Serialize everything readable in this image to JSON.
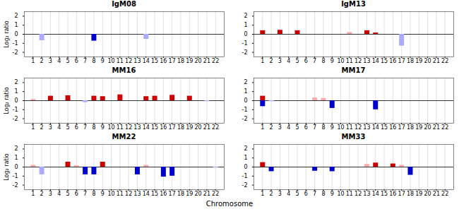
{
  "chart_data": [
    {
      "type": "bar",
      "title": "IgM08",
      "x": [
        2,
        8,
        14
      ],
      "values": [
        -0.7,
        -0.75,
        -0.55
      ],
      "colors": [
        "#aaaaff",
        "#0000cc",
        "#aaaaff"
      ],
      "xlim": [
        0,
        23
      ],
      "xticks": [
        1,
        2,
        3,
        4,
        5,
        6,
        7,
        8,
        9,
        10,
        11,
        12,
        13,
        14,
        15,
        16,
        17,
        18,
        19,
        20,
        21,
        22
      ],
      "ylim": [
        -2.5,
        2.5
      ],
      "yticks": [
        -2,
        -1,
        0,
        1,
        2
      ],
      "ylabel": "Log₂ ratio",
      "grid": true
    },
    {
      "type": "bar",
      "title": "IgM13",
      "x": [
        1,
        3,
        5,
        11,
        13,
        14,
        17
      ],
      "values": [
        0.4,
        0.45,
        0.4,
        0.2,
        0.4,
        0.15,
        -1.3
      ],
      "colors": [
        "#cc0000",
        "#cc0000",
        "#cc0000",
        "#ffaaaa",
        "#cc0000",
        "#cc0000",
        "#aaaaff"
      ],
      "xlim": [
        0,
        23
      ],
      "xticks": [
        1,
        2,
        3,
        4,
        5,
        6,
        7,
        8,
        9,
        10,
        11,
        12,
        13,
        14,
        15,
        16,
        17,
        18,
        19,
        20,
        21,
        22
      ],
      "ylim": [
        -2.5,
        2.5
      ],
      "yticks": [
        -2,
        -1,
        0,
        1,
        2
      ],
      "grid": true
    },
    {
      "type": "bar",
      "title": "MM16",
      "x": [
        1,
        3,
        5,
        7,
        8,
        9,
        11,
        14,
        15,
        17,
        19,
        21
      ],
      "values": [
        0.15,
        0.5,
        0.55,
        -0.2,
        0.5,
        0.45,
        0.65,
        0.45,
        0.5,
        0.6,
        0.5,
        -0.1
      ],
      "colors": [
        "#ffaaaa",
        "#cc0000",
        "#cc0000",
        "#aaaaff",
        "#cc0000",
        "#cc0000",
        "#cc0000",
        "#cc0000",
        "#cc0000",
        "#cc0000",
        "#cc0000",
        "#aaaaff"
      ],
      "xlim": [
        0,
        23
      ],
      "xticks": [
        1,
        2,
        3,
        4,
        5,
        6,
        7,
        8,
        9,
        10,
        11,
        12,
        13,
        14,
        15,
        16,
        17,
        18,
        19,
        20,
        21,
        22
      ],
      "ylim": [
        -2.5,
        2.5
      ],
      "yticks": [
        -2,
        -1,
        0,
        1,
        2
      ],
      "ylabel": "Log₂ ratio",
      "grid": true
    },
    {
      "type": "bar",
      "title": "MM17",
      "x": [
        1,
        1,
        7,
        8,
        9,
        14,
        2
      ],
      "values": [
        0.5,
        -0.65,
        0.3,
        0.25,
        -0.85,
        -1.0,
        -0.1
      ],
      "colors": [
        "#cc0000",
        "#0000cc",
        "#ffaaaa",
        "#ffaaaa",
        "#0000cc",
        "#0000cc",
        "#aaaaff"
      ],
      "xlim": [
        0,
        23
      ],
      "xticks": [
        1,
        2,
        3,
        4,
        5,
        6,
        7,
        8,
        9,
        10,
        11,
        12,
        13,
        14,
        15,
        16,
        17,
        18,
        19,
        20,
        21,
        22
      ],
      "ylim": [
        -2.5,
        2.5
      ],
      "yticks": [
        -2,
        -1,
        0,
        1,
        2
      ],
      "grid": true
    },
    {
      "type": "bar",
      "title": "MM22",
      "x": [
        1,
        2,
        5,
        6,
        7,
        8,
        9,
        13,
        14,
        16,
        17,
        22
      ],
      "values": [
        0.2,
        -0.85,
        0.55,
        0.15,
        -0.85,
        -0.85,
        0.55,
        -0.85,
        0.2,
        -1.1,
        -1.0,
        -0.1
      ],
      "colors": [
        "#ffaaaa",
        "#aaaaff",
        "#cc0000",
        "#ffaaaa",
        "#0000cc",
        "#0000cc",
        "#cc0000",
        "#0000cc",
        "#ffaaaa",
        "#0000cc",
        "#0000cc",
        "#aaaaff"
      ],
      "xlim": [
        0,
        23
      ],
      "xticks": [
        1,
        2,
        3,
        4,
        5,
        6,
        7,
        8,
        9,
        10,
        11,
        12,
        13,
        14,
        15,
        16,
        17,
        18,
        19,
        20,
        21,
        22
      ],
      "ylim": [
        -2.5,
        2.5
      ],
      "yticks": [
        -2,
        -1,
        0,
        1,
        2
      ],
      "ylabel": "Log₂ ratio",
      "xlabel": "Chromosome",
      "grid": true
    },
    {
      "type": "bar",
      "title": "MM33",
      "x": [
        1,
        2,
        7,
        9,
        13,
        14,
        16,
        17,
        18
      ],
      "values": [
        0.5,
        -0.5,
        -0.45,
        -0.5,
        0.3,
        0.45,
        0.35,
        0.2,
        -0.9
      ],
      "colors": [
        "#cc0000",
        "#0000cc",
        "#0000cc",
        "#0000cc",
        "#ffaaaa",
        "#cc0000",
        "#cc0000",
        "#ffaaaa",
        "#0000cc"
      ],
      "xlim": [
        0,
        23
      ],
      "xticks": [
        1,
        2,
        3,
        4,
        5,
        6,
        7,
        8,
        9,
        10,
        11,
        12,
        13,
        14,
        15,
        16,
        17,
        18,
        19,
        20,
        21,
        22
      ],
      "ylim": [
        -2.5,
        2.5
      ],
      "yticks": [
        -2,
        -1,
        0,
        1,
        2
      ],
      "grid": true
    }
  ]
}
